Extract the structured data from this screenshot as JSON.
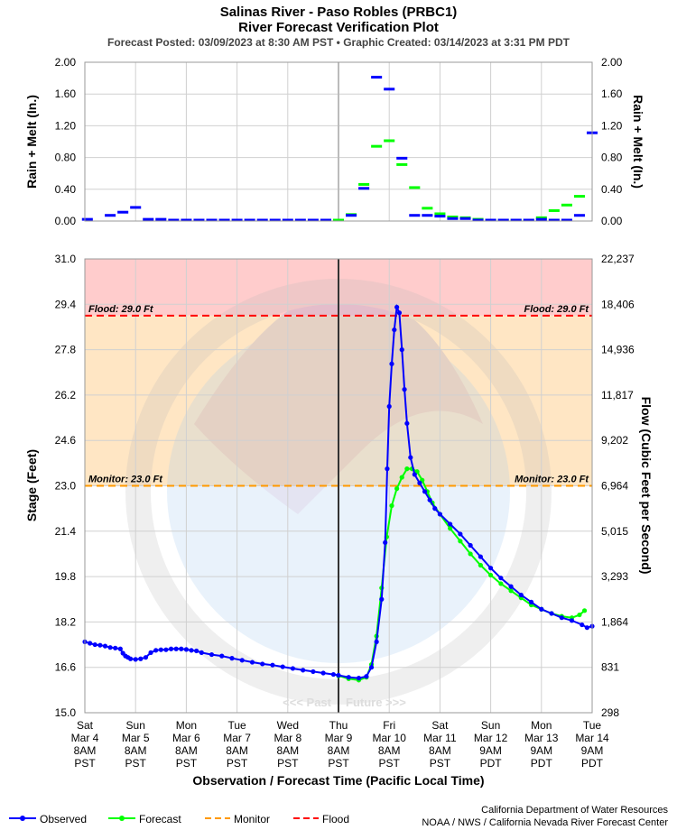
{
  "header": {
    "title_line1": "Salinas River - Paso Robles (PRBC1)",
    "title_line2": "River Forecast Verification Plot",
    "subtitle": "Forecast Posted: 03/09/2023 at 8:30 AM PST  •  Graphic Created: 03/14/2023 at 3:31 PM PDT"
  },
  "colors": {
    "observed": "#0000ff",
    "forecast": "#00ff00",
    "monitor": "#ff9900",
    "flood": "#ff0000",
    "flood_zone": "#ffcccc",
    "monitor_zone": "#ffe6c4",
    "grid": "#d0d0d0"
  },
  "chart_data": [
    {
      "type": "bar",
      "name": "precip",
      "ylabel_left": "Rain + Melt (In.)",
      "ylabel_right": "Rain + Melt (In.)",
      "ylim": [
        0,
        2
      ],
      "yticks": [
        "0.00",
        "0.40",
        "0.80",
        "1.20",
        "1.60",
        "2.00"
      ],
      "observed": [
        {
          "x": 0.05,
          "y": 0.01
        },
        {
          "x": 0.5,
          "y": 0.06
        },
        {
          "x": 0.75,
          "y": 0.1
        },
        {
          "x": 1.0,
          "y": 0.16
        },
        {
          "x": 1.25,
          "y": 0.01
        },
        {
          "x": 1.5,
          "y": 0.01
        },
        {
          "x": 1.75,
          "y": 0.0
        },
        {
          "x": 2.0,
          "y": 0.0
        },
        {
          "x": 2.25,
          "y": 0.0
        },
        {
          "x": 2.5,
          "y": 0.0
        },
        {
          "x": 2.75,
          "y": 0.0
        },
        {
          "x": 3.0,
          "y": 0.0
        },
        {
          "x": 3.25,
          "y": 0.0
        },
        {
          "x": 3.5,
          "y": 0.0
        },
        {
          "x": 3.75,
          "y": 0.0
        },
        {
          "x": 4.0,
          "y": 0.0
        },
        {
          "x": 4.25,
          "y": 0.0
        },
        {
          "x": 4.5,
          "y": 0.0
        },
        {
          "x": 4.75,
          "y": 0.0
        },
        {
          "x": 5.25,
          "y": 0.06
        },
        {
          "x": 5.5,
          "y": 0.4
        },
        {
          "x": 5.75,
          "y": 1.8
        },
        {
          "x": 6.0,
          "y": 1.65
        },
        {
          "x": 6.25,
          "y": 0.78
        },
        {
          "x": 6.5,
          "y": 0.06
        },
        {
          "x": 6.75,
          "y": 0.06
        },
        {
          "x": 7.0,
          "y": 0.05
        },
        {
          "x": 7.25,
          "y": 0.02
        },
        {
          "x": 7.5,
          "y": 0.02
        },
        {
          "x": 7.75,
          "y": 0.0
        },
        {
          "x": 8.0,
          "y": 0.0
        },
        {
          "x": 8.25,
          "y": 0.0
        },
        {
          "x": 8.5,
          "y": 0.0
        },
        {
          "x": 8.75,
          "y": 0.0
        },
        {
          "x": 9.0,
          "y": 0.01
        },
        {
          "x": 9.25,
          "y": 0.0
        },
        {
          "x": 9.5,
          "y": 0.0
        },
        {
          "x": 9.75,
          "y": 0.06
        },
        {
          "x": 10.0,
          "y": 1.1
        }
      ],
      "forecast": [
        {
          "x": 5.0,
          "y": 0.0
        },
        {
          "x": 5.25,
          "y": 0.07
        },
        {
          "x": 5.5,
          "y": 0.45
        },
        {
          "x": 5.75,
          "y": 0.93
        },
        {
          "x": 6.0,
          "y": 1.0
        },
        {
          "x": 6.25,
          "y": 0.7
        },
        {
          "x": 6.5,
          "y": 0.41
        },
        {
          "x": 6.75,
          "y": 0.15
        },
        {
          "x": 7.0,
          "y": 0.08
        },
        {
          "x": 7.25,
          "y": 0.04
        },
        {
          "x": 7.5,
          "y": 0.03
        },
        {
          "x": 7.75,
          "y": 0.01
        },
        {
          "x": 8.0,
          "y": 0.0
        },
        {
          "x": 8.25,
          "y": 0.0
        },
        {
          "x": 8.5,
          "y": 0.0
        },
        {
          "x": 8.75,
          "y": 0.0
        },
        {
          "x": 9.0,
          "y": 0.03
        },
        {
          "x": 9.25,
          "y": 0.12
        },
        {
          "x": 9.5,
          "y": 0.19
        },
        {
          "x": 9.75,
          "y": 0.3
        }
      ]
    },
    {
      "type": "line",
      "name": "stage",
      "ylabel_left": "Stage (Feet)",
      "ylabel_right": "Flow (Cubic Feet per Second)",
      "xlabel": "Observation / Forecast Time (Pacific Local Time)",
      "ylim": [
        15.0,
        31.0
      ],
      "yticks_left": [
        "15.0",
        "16.6",
        "18.2",
        "19.8",
        "21.4",
        "23.0",
        "24.6",
        "26.2",
        "27.8",
        "29.4",
        "31.0"
      ],
      "yticks_right": [
        "298",
        "831",
        "1,864",
        "3,293",
        "5,015",
        "6,964",
        "9,202",
        "11,817",
        "14,936",
        "18,406",
        "22,237"
      ],
      "x_ticks": [
        [
          "Sat",
          "Mar 4",
          "8AM",
          "PST"
        ],
        [
          "Sun",
          "Mar 5",
          "8AM",
          "PST"
        ],
        [
          "Mon",
          "Mar 6",
          "8AM",
          "PST"
        ],
        [
          "Tue",
          "Mar 7",
          "8AM",
          "PST"
        ],
        [
          "Wed",
          "Mar 8",
          "8AM",
          "PST"
        ],
        [
          "Thu",
          "Mar 9",
          "8AM",
          "PST"
        ],
        [
          "Fri",
          "Mar 10",
          "8AM",
          "PST"
        ],
        [
          "Sat",
          "Mar 11",
          "8AM",
          "PST"
        ],
        [
          "Sun",
          "Mar 12",
          "9AM",
          "PDT"
        ],
        [
          "Mon",
          "Mar 13",
          "9AM",
          "PDT"
        ],
        [
          "Tue",
          "Mar 14",
          "9AM",
          "PDT"
        ]
      ],
      "flood_stage": 29.0,
      "flood_label": "Flood: 29.0 Ft",
      "monitor_stage": 23.0,
      "monitor_label": "Monitor: 23.0 Ft",
      "past_label": "<<< Past",
      "future_label": "Future >>>",
      "forecast_time_x": 5.0,
      "observed": [
        [
          0.0,
          17.5
        ],
        [
          0.1,
          17.45
        ],
        [
          0.2,
          17.4
        ],
        [
          0.3,
          17.38
        ],
        [
          0.4,
          17.35
        ],
        [
          0.5,
          17.3
        ],
        [
          0.6,
          17.28
        ],
        [
          0.7,
          17.25
        ],
        [
          0.75,
          17.1
        ],
        [
          0.8,
          17.0
        ],
        [
          0.85,
          16.95
        ],
        [
          0.9,
          16.9
        ],
        [
          1.0,
          16.88
        ],
        [
          1.1,
          16.9
        ],
        [
          1.2,
          16.95
        ],
        [
          1.3,
          17.12
        ],
        [
          1.4,
          17.2
        ],
        [
          1.5,
          17.22
        ],
        [
          1.6,
          17.22
        ],
        [
          1.7,
          17.25
        ],
        [
          1.8,
          17.25
        ],
        [
          1.9,
          17.25
        ],
        [
          2.0,
          17.23
        ],
        [
          2.1,
          17.2
        ],
        [
          2.2,
          17.18
        ],
        [
          2.3,
          17.12
        ],
        [
          2.5,
          17.05
        ],
        [
          2.7,
          17.0
        ],
        [
          2.9,
          16.92
        ],
        [
          3.1,
          16.85
        ],
        [
          3.3,
          16.78
        ],
        [
          3.5,
          16.72
        ],
        [
          3.7,
          16.68
        ],
        [
          3.9,
          16.62
        ],
        [
          4.1,
          16.56
        ],
        [
          4.3,
          16.5
        ],
        [
          4.5,
          16.45
        ],
        [
          4.7,
          16.4
        ],
        [
          4.9,
          16.35
        ],
        [
          5.0,
          16.32
        ],
        [
          5.2,
          16.25
        ],
        [
          5.4,
          16.22
        ],
        [
          5.55,
          16.28
        ],
        [
          5.65,
          16.6
        ],
        [
          5.75,
          17.5
        ],
        [
          5.85,
          19.0
        ],
        [
          5.92,
          21.0
        ],
        [
          5.96,
          23.6
        ],
        [
          6.0,
          25.8
        ],
        [
          6.05,
          27.3
        ],
        [
          6.1,
          28.5
        ],
        [
          6.15,
          29.3
        ],
        [
          6.2,
          29.1
        ],
        [
          6.25,
          27.8
        ],
        [
          6.3,
          26.4
        ],
        [
          6.35,
          25.2
        ],
        [
          6.42,
          24.0
        ],
        [
          6.5,
          23.4
        ],
        [
          6.6,
          23.1
        ],
        [
          6.7,
          22.8
        ],
        [
          6.8,
          22.5
        ],
        [
          6.9,
          22.2
        ],
        [
          7.0,
          22.0
        ],
        [
          7.2,
          21.65
        ],
        [
          7.4,
          21.3
        ],
        [
          7.6,
          20.9
        ],
        [
          7.8,
          20.5
        ],
        [
          8.0,
          20.1
        ],
        [
          8.2,
          19.75
        ],
        [
          8.4,
          19.45
        ],
        [
          8.6,
          19.15
        ],
        [
          8.8,
          18.9
        ],
        [
          9.0,
          18.65
        ],
        [
          9.2,
          18.5
        ],
        [
          9.4,
          18.35
        ],
        [
          9.6,
          18.25
        ],
        [
          9.8,
          18.1
        ],
        [
          9.9,
          18.0
        ],
        [
          10.0,
          18.05
        ]
      ],
      "forecast": [
        [
          5.0,
          16.3
        ],
        [
          5.2,
          16.2
        ],
        [
          5.4,
          16.15
        ],
        [
          5.55,
          16.25
        ],
        [
          5.65,
          16.7
        ],
        [
          5.75,
          17.7
        ],
        [
          5.85,
          19.4
        ],
        [
          5.95,
          21.2
        ],
        [
          6.05,
          22.3
        ],
        [
          6.15,
          22.9
        ],
        [
          6.25,
          23.3
        ],
        [
          6.35,
          23.6
        ],
        [
          6.45,
          23.6
        ],
        [
          6.55,
          23.5
        ],
        [
          6.65,
          23.2
        ],
        [
          6.75,
          22.8
        ],
        [
          6.85,
          22.4
        ],
        [
          7.0,
          22.0
        ],
        [
          7.2,
          21.5
        ],
        [
          7.4,
          21.05
        ],
        [
          7.6,
          20.6
        ],
        [
          7.8,
          20.2
        ],
        [
          8.0,
          19.85
        ],
        [
          8.2,
          19.55
        ],
        [
          8.4,
          19.3
        ],
        [
          8.6,
          19.05
        ],
        [
          8.8,
          18.8
        ],
        [
          9.0,
          18.65
        ],
        [
          9.2,
          18.5
        ],
        [
          9.4,
          18.4
        ],
        [
          9.6,
          18.35
        ],
        [
          9.75,
          18.45
        ],
        [
          9.85,
          18.6
        ]
      ]
    }
  ],
  "legend": {
    "observed": "Observed",
    "forecast": "Forecast",
    "monitor": "Monitor",
    "flood": "Flood"
  },
  "credits": {
    "line1": "California Department of Water Resources",
    "line2": "NOAA / NWS / California Nevada River Forecast Center"
  }
}
